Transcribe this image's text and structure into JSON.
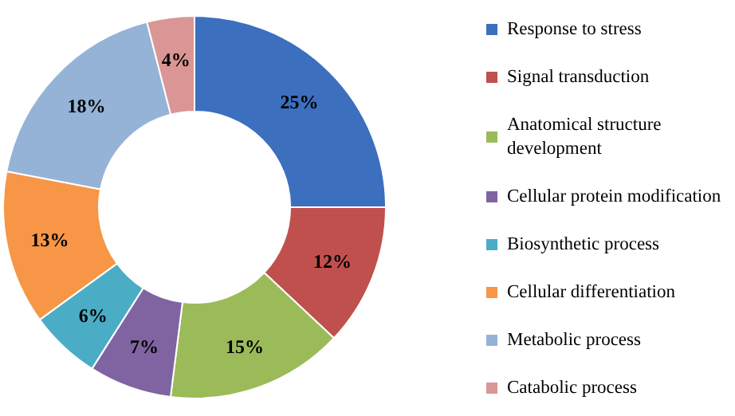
{
  "chart_data": {
    "type": "donut",
    "legend": "right",
    "categories": [
      "Response to stress",
      "Signal transduction",
      "Anatomical structure development",
      "Cellular protein modification",
      "Biosynthetic process",
      "Cellular differentiation",
      "Metabolic process",
      "Catabolic process"
    ],
    "values": [
      25,
      12,
      15,
      7,
      6,
      13,
      18,
      4
    ],
    "value_labels": [
      "25%",
      "12%",
      "15%",
      "7%",
      "6%",
      "13%",
      "18%",
      "4%"
    ],
    "colors": [
      "#3c6fbe",
      "#c0504d",
      "#9bbb59",
      "#8064a2",
      "#4bacc6",
      "#f79646",
      "#95b3d7",
      "#d99694"
    ]
  }
}
